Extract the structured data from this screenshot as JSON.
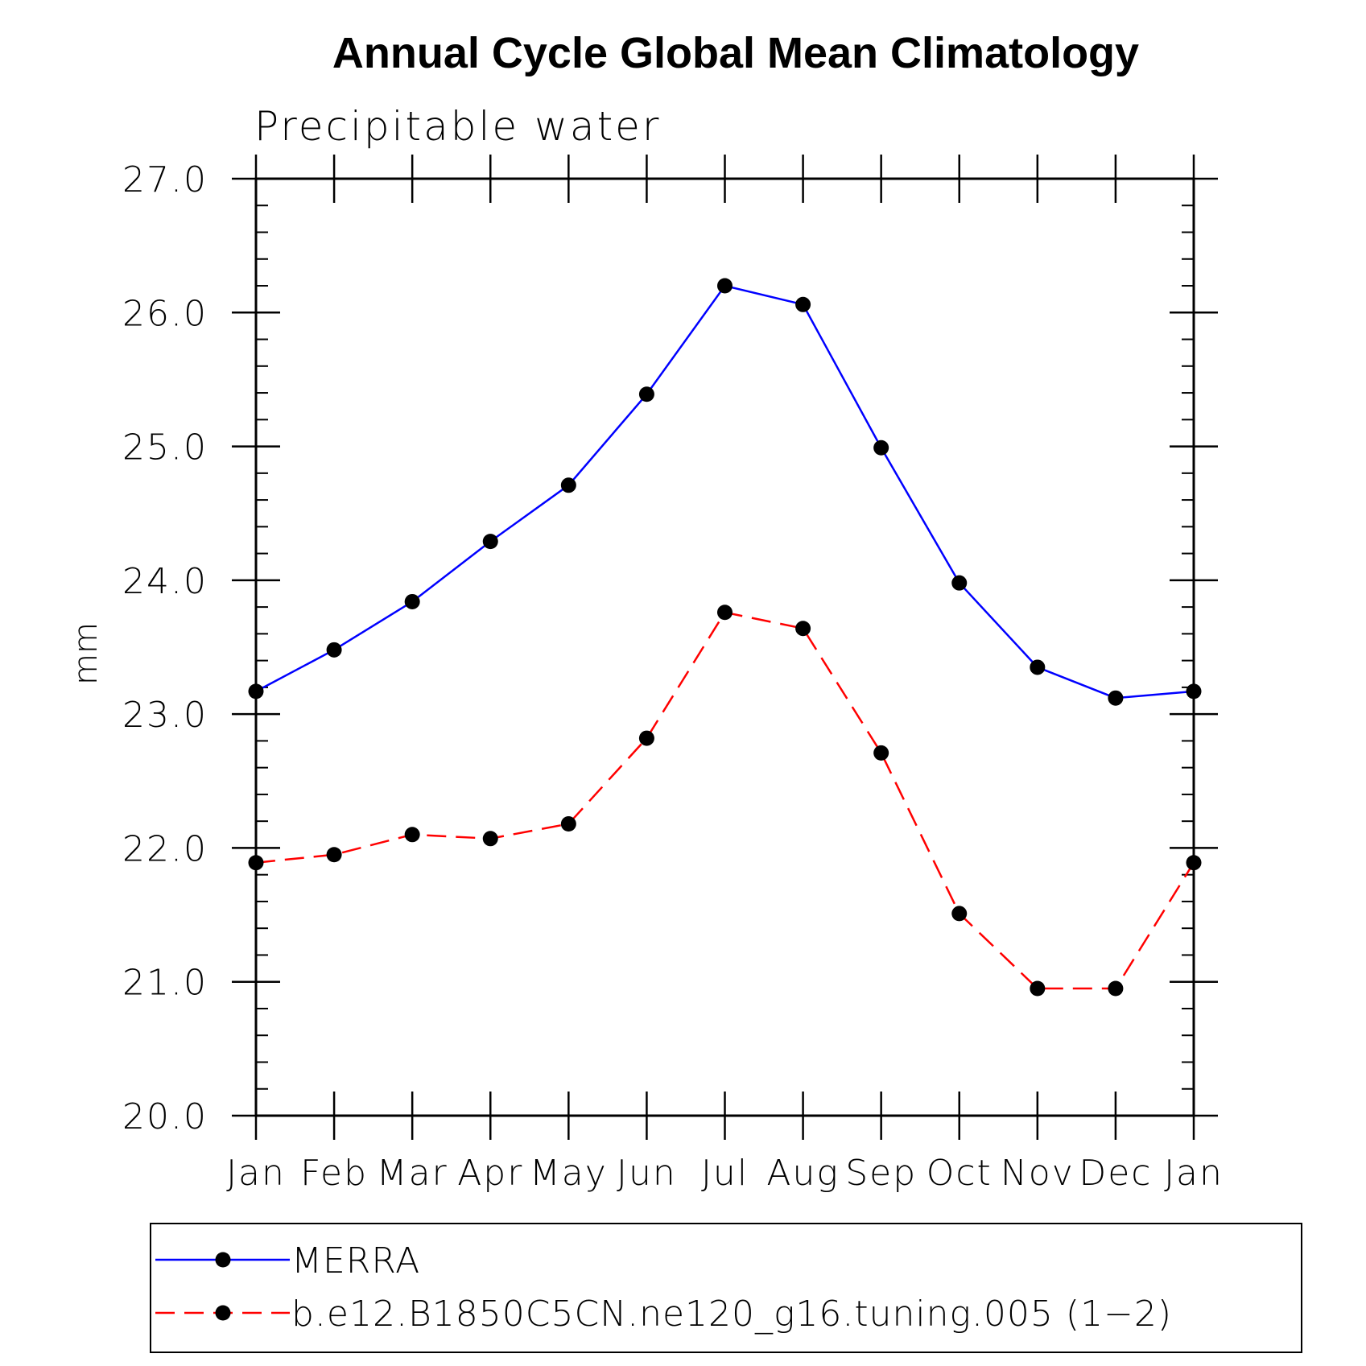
{
  "chart_data": {
    "type": "line",
    "title": "Annual Cycle Global Mean Climatology",
    "subtitle": "Precipitable water",
    "xlabel": "",
    "ylabel": "mm",
    "categories": [
      "Jan",
      "Feb",
      "Mar",
      "Apr",
      "May",
      "Jun",
      "Jul",
      "Aug",
      "Sep",
      "Oct",
      "Nov",
      "Dec",
      "Jan"
    ],
    "ylim": [
      20.0,
      27.0
    ],
    "yticks": [
      "20.0",
      "21.0",
      "22.0",
      "23.0",
      "24.0",
      "25.0",
      "26.0",
      "27.0"
    ],
    "grid": false,
    "legend_position": "bottom",
    "series": [
      {
        "name": "MERRA",
        "color": "#0000ff",
        "line_style": "solid",
        "marker": "filled-circle",
        "values": [
          23.17,
          23.48,
          23.84,
          24.29,
          24.71,
          25.39,
          26.2,
          26.06,
          24.99,
          23.98,
          23.35,
          23.12,
          23.17
        ]
      },
      {
        "name": "b.e12.B1850C5CN.ne120_g16.tuning.005 (1−2)",
        "color": "#ff0000",
        "line_style": "dashed",
        "marker": "filled-circle",
        "values": [
          21.89,
          21.95,
          22.1,
          22.07,
          22.18,
          22.82,
          23.76,
          23.64,
          22.71,
          21.51,
          20.95,
          20.95,
          21.89
        ]
      }
    ]
  }
}
